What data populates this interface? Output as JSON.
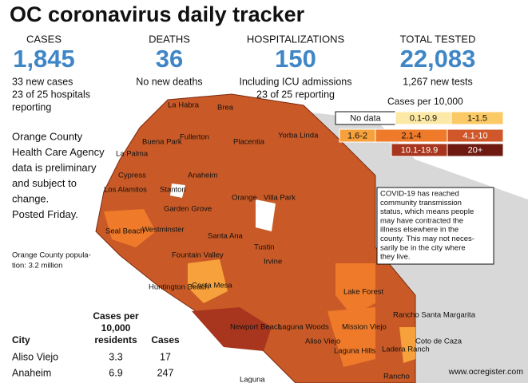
{
  "header": {
    "title": "OC coronavirus daily tracker"
  },
  "stats": [
    {
      "label": "CASES",
      "value": "1,845",
      "notes": [
        "33 new cases",
        "23 of 25 hospitals",
        "reporting"
      ]
    },
    {
      "label": "DEATHS",
      "value": "36",
      "notes": [
        "No new deaths"
      ]
    },
    {
      "label": "HOSPITALIZATIONS",
      "value": "150",
      "notes": [
        "Including ICU admissions",
        "23 of 25 reporting"
      ]
    },
    {
      "label": "TOTAL TESTED",
      "value": "22,083",
      "notes": [
        "1,267 new tests"
      ]
    }
  ],
  "side_note": [
    "Orange County",
    "Health Care Agency",
    "data is preliminary",
    "and subject to",
    "change.",
    "Posted Friday."
  ],
  "population_note": [
    "Orange County popula-",
    "tion: 3.2 million"
  ],
  "legend": {
    "title": "Cases per 10,000",
    "items": [
      {
        "label": "No data",
        "color": "#ffffff"
      },
      {
        "label": "0.1-0.9",
        "color": "#fde9a6"
      },
      {
        "label": "1-1.5",
        "color": "#fbc965"
      },
      {
        "label": "1.6-2",
        "color": "#f7a13c"
      },
      {
        "label": "2.1-4",
        "color": "#ee7a2a"
      },
      {
        "label": "4.1-10",
        "color": "#d0572a"
      },
      {
        "label": "10.1-19.9",
        "color": "#a8361e"
      },
      {
        "label": "20+",
        "color": "#6e1a10"
      }
    ]
  },
  "callout": [
    "COVID-19 has reached",
    "community transmission",
    "status, which means people",
    "may have contracted the",
    "illness elsewhere in the",
    "county. This may not neces-",
    "sarily be in the city where",
    "they live."
  ],
  "map_labels": [
    "La Habra",
    "Brea",
    "Buena Park",
    "Fullerton",
    "Placentia",
    "Yorba Linda",
    "La Palma",
    "Cypress",
    "Anaheim",
    "Los Alamitos",
    "Stanton",
    "Villa Park",
    "Orange",
    "Garden Grove",
    "Seal Beach",
    "Westminster",
    "Santa Ana",
    "Tustin",
    "Fountain Valley",
    "Huntington Beach",
    "Costa Mesa",
    "Irvine",
    "Lake Forest",
    "Newport Beach",
    "Laguna Woods",
    "Mission Viejo",
    "Rancho Santa Margarita",
    "Coto de Caza",
    "Aliso Viejo",
    "Laguna Hills",
    "Ladera Ranch",
    "Rancho",
    "Laguna"
  ],
  "table": {
    "headers": [
      "City",
      [
        "Cases per",
        "10,000",
        "residents"
      ],
      "Cases"
    ],
    "rows": [
      [
        "Aliso Viejo",
        "3.3",
        "17"
      ],
      [
        "Anaheim",
        "6.9",
        "247"
      ]
    ]
  },
  "credit": "www.ocregister.com"
}
